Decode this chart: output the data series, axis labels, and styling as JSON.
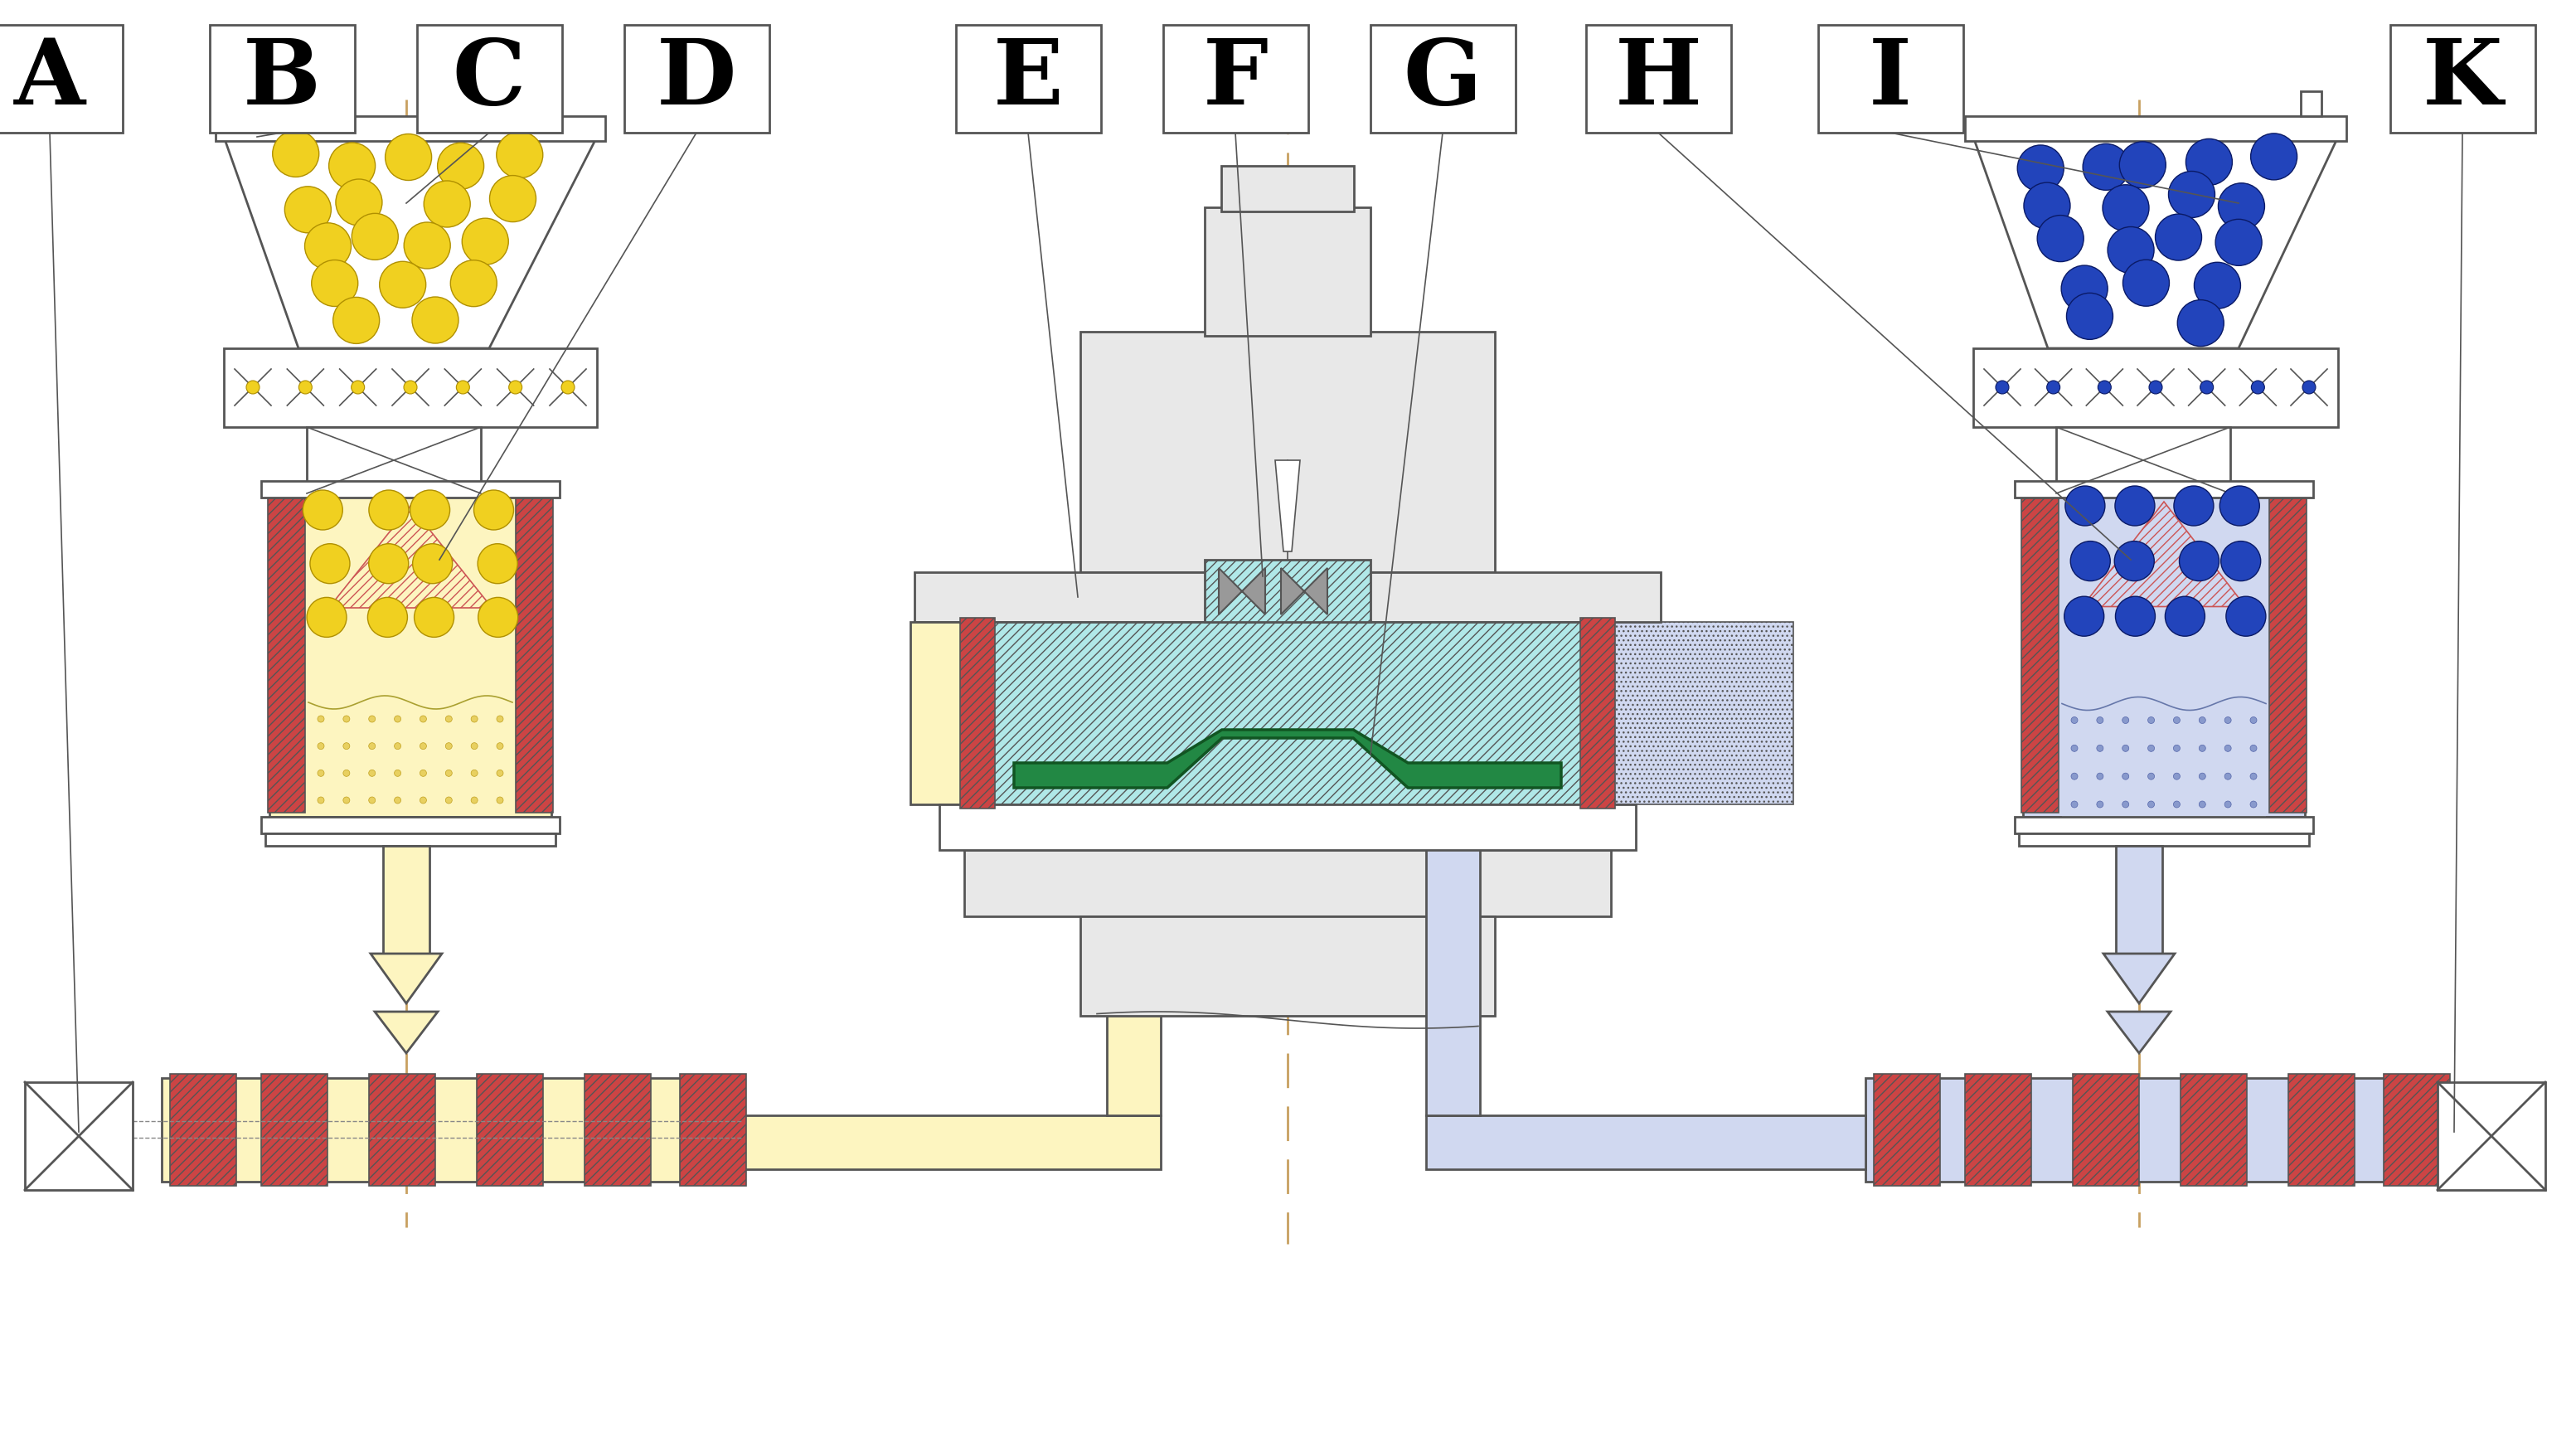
{
  "labels": [
    "A",
    "B",
    "C",
    "D",
    "E",
    "F",
    "G",
    "H",
    "I",
    "K"
  ],
  "bg": "#ffffff",
  "lc": "#555555",
  "yellow_pellet": "#f0d020",
  "yellow_pellet_edge": "#b09000",
  "yellow_fill": "#fdf5c0",
  "yellow_melt": "#f5e88a",
  "blue_pellet": "#2244bb",
  "blue_pellet_edge": "#0a1a66",
  "blue_fill": "#d0d8f0",
  "blue_melt": "#b0bce0",
  "red_fill": "#cc4444",
  "green_fill": "#228844",
  "green_edge": "#115522",
  "cyan_fill": "#b0e8e8",
  "cyan_edge": "#559999",
  "gray_light": "#e8e8e8",
  "gray_med": "#cccccc",
  "gray_dark": "#aaaaaa",
  "orange_dash": "#c8a060",
  "hatch_red": "#cc4444",
  "dotted_blue": "#8899bb"
}
